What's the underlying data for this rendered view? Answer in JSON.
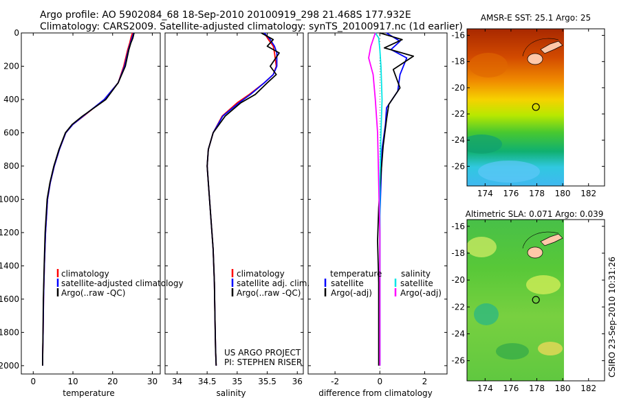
{
  "header": {
    "line1": "Argo profile: AO 5902084_68 18-Sep-2010 20100919_298 21.468S 177.932E",
    "line2": "Climatology: CARS2009. Satellite-adjusted climatology: synTS_20100917.nc (1d earlier)"
  },
  "colors": {
    "climatology": "#ff0000",
    "satellite": "#0000ff",
    "argo": "#000000",
    "satellite_salinity": "#00e5e5",
    "argo_salinity": "#ff00ff",
    "land": "#ffc8a8"
  },
  "footer": {
    "project": "US ARGO PROJECT",
    "pi": "PI: STEPHEN RISER",
    "stamp": "CSIRO 23-Sep-2010 10:31:26"
  },
  "chart_data": [
    {
      "type": "line",
      "panel": "temperature",
      "xlabel": "temperature",
      "ylabel": "",
      "xlim": [
        -3,
        32
      ],
      "ylim": [
        2050,
        0
      ],
      "xticks": [
        0,
        10,
        20,
        30
      ],
      "yticks": [
        0,
        200,
        400,
        600,
        800,
        1000,
        1200,
        1400,
        1600,
        1800,
        2000
      ],
      "legend": [
        "climatology",
        "satellite-adjusted climatology",
        "Argo(..raw -QC)"
      ],
      "series": [
        {
          "name": "climatology",
          "color": "#ff0000",
          "x": [
            25.0,
            24.6,
            24.3,
            23.8,
            22.8,
            21.4,
            17.9,
            12.7,
            10.0,
            8.2,
            6.6,
            5.3,
            4.3,
            3.6,
            3.1,
            2.8,
            2.6,
            2.5,
            2.4,
            2.35
          ],
          "y": [
            0,
            30,
            60,
            100,
            200,
            300,
            400,
            500,
            550,
            600,
            700,
            800,
            900,
            1000,
            1200,
            1400,
            1600,
            1800,
            1900,
            2000
          ]
        },
        {
          "name": "satellite-adjusted climatology",
          "color": "#0000ff",
          "x": [
            25.3,
            24.9,
            24.5,
            24.0,
            23.0,
            21.4,
            17.9,
            12.6,
            10.0,
            8.2,
            6.6,
            5.3,
            4.3,
            3.6,
            3.1,
            2.8,
            2.6,
            2.5,
            2.4,
            2.35
          ],
          "y": [
            0,
            30,
            60,
            100,
            200,
            300,
            400,
            500,
            550,
            600,
            700,
            800,
            900,
            1000,
            1200,
            1400,
            1600,
            1800,
            1900,
            2000
          ]
        },
        {
          "name": "Argo(..raw -QC)",
          "color": "#000000",
          "x": [
            25.4,
            25.1,
            24.6,
            24.1,
            23.2,
            21.4,
            18.3,
            12.4,
            9.8,
            8.1,
            6.5,
            5.2,
            4.2,
            3.5,
            3.0,
            2.75,
            2.55,
            2.45,
            2.4,
            2.35
          ],
          "y": [
            0,
            30,
            60,
            100,
            200,
            300,
            400,
            500,
            550,
            600,
            700,
            800,
            900,
            1000,
            1200,
            1400,
            1600,
            1800,
            1900,
            2000
          ]
        }
      ]
    },
    {
      "type": "line",
      "panel": "salinity",
      "xlabel": "salinity",
      "ylabel": "",
      "xlim": [
        33.8,
        36.1
      ],
      "ylim": [
        2050,
        0
      ],
      "xticks": [
        34,
        34.5,
        35,
        35.5,
        36
      ],
      "legend": [
        "climatology",
        "satellite adj. clim.",
        "Argo(..raw -QC)"
      ],
      "series": [
        {
          "name": "climatology",
          "color": "#ff0000",
          "x": [
            35.45,
            35.52,
            35.6,
            35.62,
            35.65,
            35.6,
            35.45,
            35.2,
            35.0,
            34.75,
            34.6,
            34.52,
            34.5,
            34.52,
            34.56,
            34.6,
            34.62,
            34.63,
            34.64,
            34.65
          ],
          "y": [
            0,
            40,
            80,
            120,
            200,
            250,
            300,
            370,
            420,
            500,
            600,
            700,
            800,
            900,
            1100,
            1300,
            1500,
            1700,
            1900,
            2000
          ]
        },
        {
          "name": "satellite adj. clim.",
          "color": "#0000ff",
          "x": [
            35.45,
            35.55,
            35.62,
            35.66,
            35.66,
            35.6,
            35.45,
            35.22,
            35.03,
            34.76,
            34.6,
            34.52,
            34.5,
            34.52,
            34.56,
            34.6,
            34.62,
            34.63,
            34.64,
            34.65
          ],
          "y": [
            0,
            40,
            80,
            120,
            200,
            250,
            300,
            370,
            420,
            500,
            600,
            700,
            800,
            900,
            1100,
            1300,
            1500,
            1700,
            1900,
            2000
          ]
        },
        {
          "name": "Argo(..raw -QC)",
          "color": "#000000",
          "x": [
            35.4,
            35.6,
            35.5,
            35.7,
            35.55,
            35.65,
            35.5,
            35.3,
            35.06,
            34.8,
            34.6,
            34.52,
            34.5,
            34.52,
            34.56,
            34.6,
            34.62,
            34.63,
            34.64,
            34.65
          ],
          "y": [
            0,
            40,
            80,
            120,
            200,
            250,
            300,
            370,
            420,
            500,
            600,
            700,
            800,
            900,
            1100,
            1300,
            1500,
            1700,
            1900,
            2000
          ]
        }
      ]
    },
    {
      "type": "line",
      "panel": "difference",
      "xlabel": "difference from climatology",
      "ylabel": "",
      "xlim": [
        -3.2,
        3.0
      ],
      "ylim": [
        2050,
        0
      ],
      "xticks": [
        -2,
        0,
        2
      ],
      "legend_left": [
        "temperature",
        "satellite",
        "Argo(-adj)"
      ],
      "legend_right": [
        "salinity",
        "satellite",
        "Argo(-adj)"
      ],
      "series": [
        {
          "name": "temperature satellite",
          "color": "#0000ff",
          "x": [
            0.3,
            0.9,
            0.5,
            1.2,
            0.9,
            0.8,
            0.3,
            0.25,
            0.1,
            0.05,
            0.0,
            0.0,
            0.0,
            0.0,
            0.0
          ],
          "y": [
            0,
            50,
            100,
            150,
            250,
            350,
            450,
            550,
            700,
            900,
            1100,
            1300,
            1500,
            1800,
            2000
          ]
        },
        {
          "name": "temperature Argo(-adj)",
          "color": "#000000",
          "x": [
            0.0,
            1.0,
            0.2,
            1.5,
            0.6,
            0.9,
            0.4,
            0.3,
            0.15,
            0.05,
            -0.05,
            -0.1,
            -0.05,
            -0.05,
            -0.05
          ],
          "y": [
            0,
            40,
            90,
            140,
            220,
            330,
            430,
            520,
            680,
            850,
            1050,
            1250,
            1500,
            1800,
            2000
          ]
        },
        {
          "name": "salinity satellite",
          "color": "#00e5e5",
          "x": [
            -0.2,
            -0.05,
            0.0,
            0.05,
            0.1,
            0.05,
            0.0,
            0.0,
            0.0,
            0.0,
            0.0
          ],
          "y": [
            0,
            30,
            100,
            200,
            400,
            600,
            900,
            1200,
            1500,
            1800,
            2000
          ]
        },
        {
          "name": "salinity Argo(-adj)",
          "color": "#ff00ff",
          "x": [
            -0.2,
            -0.4,
            -0.5,
            -0.3,
            -0.2,
            -0.1,
            -0.05,
            0.0,
            0.0,
            0.0
          ],
          "y": [
            0,
            80,
            150,
            250,
            400,
            600,
            900,
            1200,
            1600,
            2000
          ]
        }
      ]
    },
    {
      "type": "heatmap",
      "panel": "sst",
      "title": "AMSR-E SST: 25.1 Argo: 25",
      "xlim": [
        172.6,
        180.1
      ],
      "ylim": [
        -27.5,
        -15.5
      ],
      "xticks": [
        174,
        176,
        178,
        180,
        182
      ],
      "yticks": [
        -16,
        -18,
        -20,
        -22,
        -24,
        -26
      ],
      "marker": {
        "x": 177.93,
        "y": -21.47
      }
    },
    {
      "type": "heatmap",
      "panel": "sla",
      "title": "Altimetric SLA: 0.071 Argo: 0.039",
      "xlim": [
        172.6,
        180.1
      ],
      "ylim": [
        -27.5,
        -15.5
      ],
      "xticks": [
        174,
        176,
        178,
        180,
        182
      ],
      "yticks": [
        -16,
        -18,
        -20,
        -22,
        -24,
        -26
      ],
      "marker": {
        "x": 177.93,
        "y": -21.47
      }
    }
  ]
}
